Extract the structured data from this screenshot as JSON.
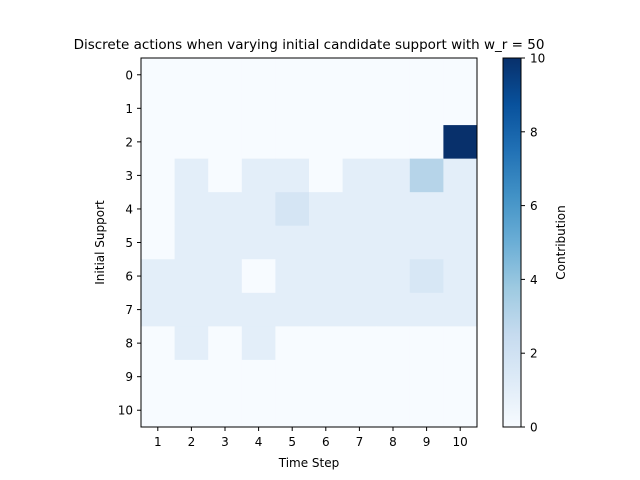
{
  "chart_data": {
    "type": "heatmap",
    "title": "Discrete actions when varying initial candidate support with w_r = 50",
    "xlabel": "Time Step",
    "ylabel": "Initial Support",
    "x_categories": [
      "1",
      "2",
      "3",
      "4",
      "5",
      "6",
      "7",
      "8",
      "9",
      "10"
    ],
    "y_categories": [
      "0",
      "1",
      "2",
      "3",
      "4",
      "5",
      "6",
      "7",
      "8",
      "9",
      "10"
    ],
    "values": [
      [
        0,
        0,
        0,
        0,
        0,
        0,
        0,
        0,
        0,
        0
      ],
      [
        0,
        0,
        0,
        0,
        0,
        0,
        0,
        0,
        0,
        0
      ],
      [
        0,
        0,
        0,
        0,
        0,
        0,
        0,
        0,
        0,
        10
      ],
      [
        0,
        1,
        0,
        1,
        1,
        0,
        1,
        1,
        3,
        1
      ],
      [
        0,
        1,
        1,
        1,
        1.7,
        1,
        1,
        1,
        1,
        1
      ],
      [
        0,
        1,
        1,
        1,
        1,
        1,
        1,
        1,
        1,
        1
      ],
      [
        1,
        1,
        1,
        0,
        1,
        1,
        1,
        1,
        1.6,
        1
      ],
      [
        1,
        1,
        1,
        1,
        1,
        1,
        1,
        1,
        1,
        1
      ],
      [
        0,
        1,
        0,
        1,
        0,
        0,
        0,
        0,
        0,
        0
      ],
      [
        0,
        0,
        0,
        0,
        0,
        0,
        0,
        0,
        0,
        0
      ],
      [
        0,
        0,
        0,
        0,
        0,
        0,
        0,
        0,
        0,
        0
      ]
    ],
    "colorbar": {
      "label": "Contribution",
      "colormap": "Blues",
      "range": [
        0,
        10
      ],
      "ticks": [
        "0",
        "2",
        "4",
        "6",
        "8",
        "10"
      ]
    },
    "grid": false
  }
}
